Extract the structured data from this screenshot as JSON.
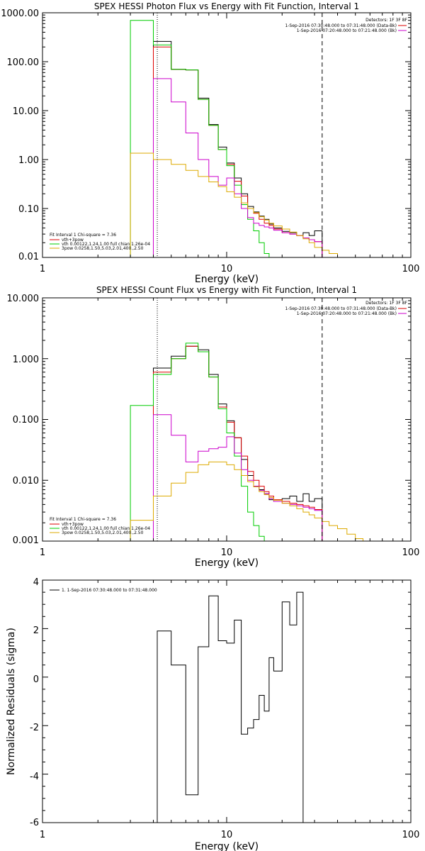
{
  "chart_data": [
    {
      "type": "line",
      "title": "SPEX HESSI Photon Flux vs Energy with Fit Function, Interval 1",
      "xlabel": "Energy (keV)",
      "ylabel": "",
      "x_scale": "log",
      "y_scale": "log",
      "xlim": [
        1,
        100
      ],
      "ylim": [
        0.01,
        1000
      ],
      "x_ticks": [
        "1",
        "10",
        "100"
      ],
      "y_ticks": [
        "1000.00",
        "100.00",
        "10.00",
        "1.00",
        "0.10",
        "0.01"
      ],
      "info_lines": [
        "Detectors: 1F 3F 8F",
        "1-Sep-2016 07:30:48.000 to 07:31:48.000 (Data-Bk)",
        "1-Sep-2016 07:20:48.000 to 07:21:48.000 (Bk)"
      ],
      "legend_lines": [
        "Fit Interval 1   Chi-square = 7.36",
        "vth+3pow",
        "vth 0.00122,1.24,1.00  full chian 1.26e-04",
        "3pow 0.0258,1.50,5.03,2.01,400.,2.50"
      ],
      "vlines": {
        "dotted": 4.2,
        "dashed": 33
      },
      "edges": [
        3,
        4,
        5,
        6,
        7,
        8,
        9,
        10,
        11,
        12,
        13,
        14,
        15,
        16,
        17,
        18,
        20,
        22,
        24,
        26,
        28,
        30,
        33,
        36,
        40,
        45
      ],
      "series": [
        {
          "color": "#000000",
          "values": [
            null,
            260,
            70,
            68,
            18,
            5.2,
            1.8,
            0.85,
            0.42,
            0.2,
            0.11,
            0.085,
            0.07,
            0.06,
            0.048,
            0.04,
            0.034,
            0.032,
            0.028,
            0.032,
            0.028,
            0.035,
            null,
            null,
            null
          ]
        },
        {
          "color": "#dd0000",
          "values": [
            null,
            200,
            70,
            68,
            17,
            5.0,
            1.6,
            0.8,
            0.36,
            0.18,
            0.1,
            0.08,
            0.06,
            0.05,
            0.045,
            0.038,
            0.032,
            0.03,
            0.028,
            0.025,
            0.023,
            0.021,
            null,
            null,
            null
          ]
        },
        {
          "color": "#00cc00",
          "values": [
            700,
            220,
            70,
            68,
            17,
            5.0,
            1.6,
            0.75,
            0.3,
            0.12,
            0.06,
            0.035,
            0.02,
            0.012,
            null,
            null,
            null,
            null,
            null,
            null,
            null,
            null,
            null,
            null,
            null
          ]
        },
        {
          "color": "#cc00cc",
          "values": [
            null,
            45,
            15,
            3.5,
            1.0,
            0.45,
            0.3,
            0.42,
            0.2,
            0.1,
            0.065,
            0.05,
            0.045,
            0.042,
            0.04,
            0.036,
            0.032,
            0.03,
            0.028,
            0.025,
            0.023,
            0.021,
            null,
            null,
            null
          ]
        },
        {
          "color": "#ddaa00",
          "values": [
            1.35,
            1.0,
            0.8,
            0.6,
            0.45,
            0.35,
            0.28,
            0.22,
            0.17,
            0.13,
            0.1,
            0.082,
            0.068,
            0.058,
            0.05,
            0.044,
            0.038,
            0.033,
            0.028,
            0.024,
            0.02,
            0.016,
            0.014,
            0.012,
            0.01
          ]
        }
      ]
    },
    {
      "type": "line",
      "title": "SPEX HESSI Count Flux vs Energy with Fit Function, Interval 1",
      "xlabel": "Energy (keV)",
      "ylabel": "",
      "x_scale": "log",
      "y_scale": "log",
      "xlim": [
        1,
        100
      ],
      "ylim": [
        0.001,
        10
      ],
      "x_ticks": [
        "1",
        "10",
        "100"
      ],
      "y_ticks": [
        "10.000",
        "1.000",
        "0.100",
        "0.010",
        "0.001"
      ],
      "info_lines": [
        "Detectors: 1F 3F 8F",
        "1-Sep-2016 07:30:48.000 to 07:31:48.000 (Data-Bk)",
        "1-Sep-2016 07:20:48.000 to 07:21:48.000 (Bk)"
      ],
      "legend_lines": [
        "Fit Interval 1   Chi-square = 7.36",
        "vth+3pow",
        "vth 0.00122,1.24,1.00  full chian 1.26e-04",
        "3pow 0.0258,1.50,5.03,2.01,400.,2.50"
      ],
      "vlines": {
        "dotted": 4.2,
        "dashed": 33
      },
      "edges": [
        3,
        4,
        5,
        6,
        7,
        8,
        9,
        10,
        11,
        12,
        13,
        14,
        15,
        16,
        17,
        18,
        20,
        22,
        24,
        26,
        28,
        30,
        33,
        36,
        40,
        45,
        50,
        55,
        60
      ],
      "series": [
        {
          "color": "#000000",
          "values": [
            null,
            0.7,
            1.1,
            1.6,
            1.4,
            0.55,
            0.18,
            0.095,
            0.05,
            0.022,
            0.012,
            0.008,
            0.007,
            0.006,
            0.0048,
            0.0045,
            0.005,
            0.0055,
            0.0045,
            0.006,
            0.0045,
            0.005,
            null,
            null,
            null,
            null,
            null,
            null
          ]
        },
        {
          "color": "#dd0000",
          "values": [
            null,
            0.6,
            1.0,
            1.6,
            1.3,
            0.5,
            0.16,
            0.09,
            0.05,
            0.025,
            0.014,
            0.01,
            0.008,
            0.0065,
            0.0055,
            0.0048,
            0.0045,
            0.0042,
            0.004,
            0.0038,
            0.0036,
            0.0033,
            null,
            null,
            null,
            null,
            null,
            null
          ]
        },
        {
          "color": "#00cc00",
          "values": [
            0.17,
            0.55,
            1.0,
            1.8,
            1.3,
            0.5,
            0.15,
            0.06,
            0.025,
            0.008,
            0.003,
            0.0018,
            0.0012,
            null,
            null,
            null,
            null,
            null,
            null,
            null,
            null,
            null,
            null,
            null,
            null,
            null,
            null,
            null
          ]
        },
        {
          "color": "#cc00cc",
          "values": [
            null,
            0.12,
            0.055,
            0.02,
            0.03,
            0.033,
            0.035,
            0.052,
            0.028,
            0.015,
            0.01,
            0.008,
            0.0068,
            0.006,
            0.005,
            0.0045,
            0.0042,
            0.004,
            0.0038,
            0.0036,
            0.0034,
            0.0032,
            null,
            null,
            null,
            null,
            null,
            null
          ]
        },
        {
          "color": "#ddaa00",
          "values": [
            0.0022,
            0.0055,
            0.009,
            0.0135,
            0.018,
            0.02,
            0.02,
            0.018,
            0.015,
            0.012,
            0.0095,
            0.0078,
            0.0065,
            0.0058,
            0.0052,
            0.0047,
            0.0042,
            0.0038,
            0.0034,
            0.003,
            0.0027,
            0.0024,
            0.0021,
            0.0018,
            0.0016,
            0.0013,
            0.0011,
            0.001
          ]
        }
      ]
    },
    {
      "type": "line",
      "title": "",
      "xlabel": "Energy (keV)",
      "ylabel": "Normalized Residuals (sigma)",
      "x_scale": "log",
      "y_scale": "linear",
      "xlim": [
        1,
        100
      ],
      "ylim": [
        -6,
        4
      ],
      "x_ticks": [
        "1",
        "10",
        "100"
      ],
      "y_ticks": [
        "4",
        "2",
        "0",
        "-2",
        "-4",
        "-6"
      ],
      "legend_lines": [
        "1.  1-Sep-2016 07:30:48.000 to 07:31:48.000"
      ],
      "edges": [
        4.2,
        5,
        6,
        7,
        8,
        9,
        10,
        11,
        12,
        13,
        14,
        15,
        16,
        17,
        18,
        20,
        22,
        24,
        26,
        28,
        30,
        33
      ],
      "series": [
        {
          "color": "#000000",
          "values": [
            1.9,
            0.5,
            -4.85,
            1.25,
            3.35,
            1.5,
            1.4,
            2.35,
            -2.35,
            -2.1,
            -1.75,
            -0.75,
            -1.4,
            0.8,
            0.25,
            3.1,
            2.15,
            3.5,
            null,
            null,
            null
          ]
        }
      ]
    }
  ]
}
